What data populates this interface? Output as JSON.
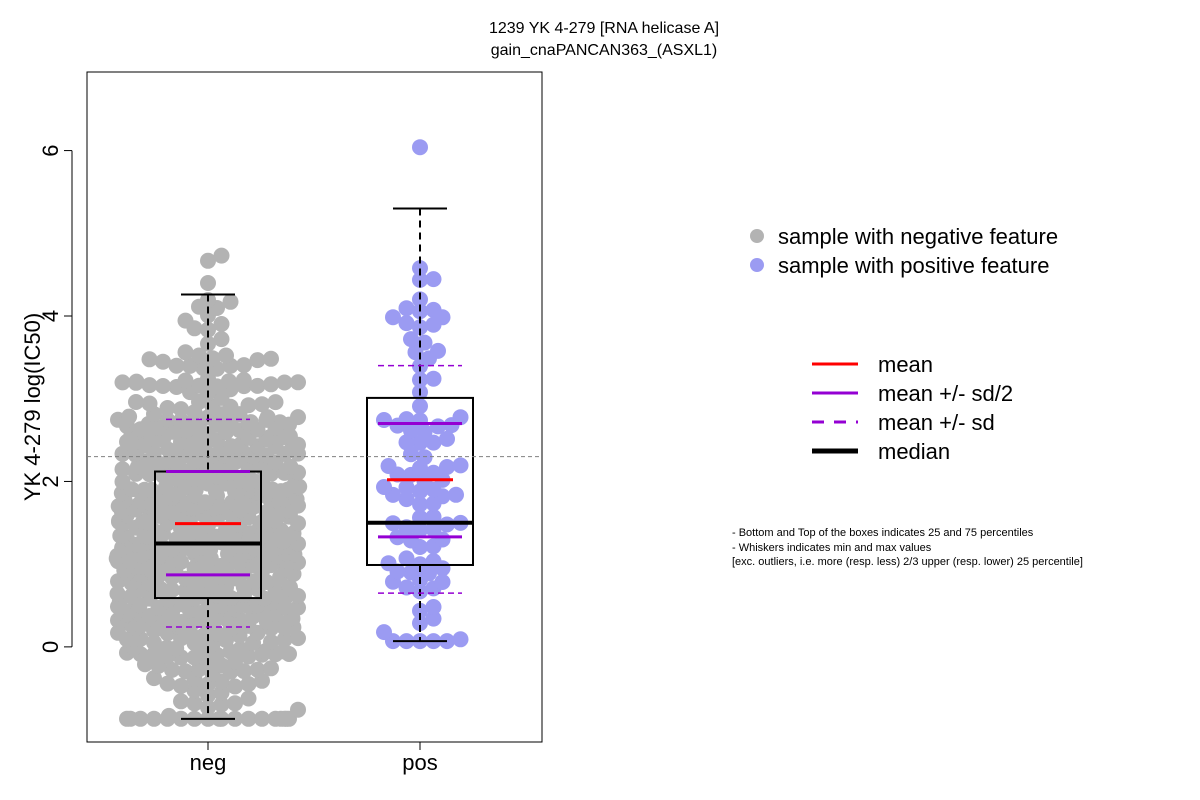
{
  "chart_data": {
    "type": "box",
    "title_lines": [
      "1239 YK 4-279 [RNA helicase A]",
      "gain_cnaPANCAN363_(ASXL1)"
    ],
    "ylabel": "YK 4-279 log(IC50)",
    "xlabel": "",
    "categories": [
      "neg",
      "pos"
    ],
    "ylim": [
      -1.15,
      6.95
    ],
    "yticks": [
      0,
      2,
      4,
      6
    ],
    "reference_line": 2.3,
    "groups": [
      {
        "name": "neg",
        "min": -0.87,
        "q1": 0.59,
        "median": 1.25,
        "q3": 2.12,
        "max": 4.26,
        "mean": 1.49,
        "mean_minus_half_sd": 0.87,
        "mean_plus_half_sd": 2.12,
        "mean_minus_sd": 0.24,
        "mean_plus_sd": 2.75
      },
      {
        "name": "pos",
        "min": 0.07,
        "q1": 0.99,
        "median": 1.5,
        "q3": 3.01,
        "max": 5.3,
        "mean": 2.02,
        "mean_minus_half_sd": 1.33,
        "mean_plus_half_sd": 2.7,
        "mean_minus_sd": 0.65,
        "mean_plus_sd": 3.4
      }
    ],
    "points_neg_count": 560,
    "points_pos_count": 95,
    "colors": {
      "neg_points": "#b3b3b3",
      "pos_points": "#9b9bf2",
      "mean": "#ff0000",
      "sd": "#9400d3",
      "median": "#000000",
      "reference_line": "#808080"
    }
  },
  "legend_points": [
    {
      "label": "sample with negative feature",
      "color": "#b3b3b3"
    },
    {
      "label": "sample with positive feature",
      "color": "#9b9bf2"
    }
  ],
  "legend_lines": [
    {
      "label": "mean",
      "color": "#ff0000",
      "style": "solid"
    },
    {
      "label": "mean +/- sd/2",
      "color": "#9400d3",
      "style": "solid"
    },
    {
      "label": "mean +/- sd",
      "color": "#9400d3",
      "style": "dashed"
    },
    {
      "label": "median",
      "color": "#000000",
      "style": "bold"
    }
  ],
  "notes": [
    "- Bottom and Top of the boxes indicates 25 and 75 percentiles",
    "- Whiskers indicates min and max values",
    "[exc. outliers, i.e. more (resp. less) 2/3 upper (resp. lower) 25 percentile]"
  ]
}
